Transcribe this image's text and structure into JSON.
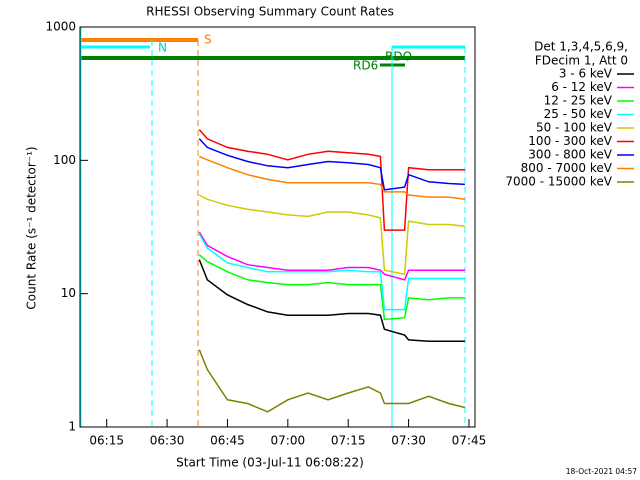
{
  "chart_data": {
    "type": "line",
    "title": "RHESSI Observing Summary Count Rates",
    "xlabel": "Start Time (03-Jul-11 06:08:22)",
    "ylabel": "Count Rate (s⁻¹ detector⁻¹)",
    "log_y": true,
    "legend_header": [
      "Det 1,3,4,5,6,9,",
      "FDecim 1, Att 0"
    ],
    "annotations": [
      "S",
      "N",
      "RDO",
      "RD6"
    ],
    "footer": "18-Oct-2021 04:57",
    "xlim": [
      368.37,
      466.5
    ],
    "xticks": [
      {
        "value": 375,
        "label": "06:15"
      },
      {
        "value": 390,
        "label": "06:30"
      },
      {
        "value": 405,
        "label": "06:45"
      },
      {
        "value": 420,
        "label": "07:00"
      },
      {
        "value": 435,
        "label": "07:15"
      },
      {
        "value": 450,
        "label": "07:30"
      },
      {
        "value": 465,
        "label": "07:45"
      }
    ],
    "ylim": [
      1,
      1000
    ],
    "yticks": [
      1,
      10,
      100,
      1000
    ],
    "x": [
      398,
      400,
      405,
      410,
      415,
      420,
      425,
      430,
      435,
      440,
      443,
      444,
      449,
      450,
      455,
      460,
      464
    ],
    "series": [
      {
        "name": "3 - 6 keV",
        "color": "#000000",
        "values": [
          18,
          12.7,
          9.8,
          8.3,
          7.3,
          6.9,
          6.9,
          6.9,
          7.1,
          7.1,
          6.9,
          5.4,
          4.9,
          4.5,
          4.4,
          4.4,
          4.4
        ]
      },
      {
        "name": "6 - 12 keV",
        "color": "#ff00ff",
        "values": [
          29,
          23,
          19,
          16.5,
          15.7,
          15,
          15,
          15,
          15.7,
          15.7,
          15,
          14,
          12.7,
          15,
          15,
          15,
          15
        ]
      },
      {
        "name": "12 - 25 keV",
        "color": "#00ff00",
        "values": [
          19.6,
          17.4,
          14.6,
          12.7,
          12.1,
          11.7,
          11.7,
          12.1,
          11.7,
          11.7,
          11.7,
          6.4,
          6.6,
          9.3,
          9,
          9.3,
          9.3
        ]
      },
      {
        "name": "25 - 50 keV",
        "color": "#00ffff",
        "values": [
          28,
          22,
          17,
          15.7,
          14.6,
          14.6,
          14.6,
          14.6,
          15,
          14.6,
          14.6,
          7.6,
          7.6,
          13,
          13,
          13,
          13
        ]
      },
      {
        "name": "50 - 100 keV",
        "color": "#cccc00",
        "values": [
          55,
          51,
          46,
          43,
          41,
          39,
          38,
          41,
          41,
          39,
          37,
          15,
          14,
          35,
          33,
          33,
          32
        ]
      },
      {
        "name": "100 - 300 keV",
        "color": "#ff0000",
        "values": [
          170,
          145,
          125,
          117,
          111,
          101,
          111,
          117,
          114,
          111,
          107,
          30,
          30,
          88,
          85,
          85,
          85
        ]
      },
      {
        "name": "300 - 800 keV",
        "color": "#0000ff",
        "values": [
          145,
          125,
          109,
          98,
          91,
          88,
          93,
          98,
          96,
          93,
          88,
          60,
          63,
          78,
          69,
          67,
          66
        ]
      },
      {
        "name": "800 - 7000 keV",
        "color": "#ff8000",
        "values": [
          107,
          101,
          88,
          78,
          72,
          68,
          68,
          68,
          68,
          68,
          66,
          58,
          58,
          55,
          53,
          53,
          51
        ]
      },
      {
        "name": "7000 - 15000 keV",
        "color": "#808000",
        "values": [
          3.8,
          2.7,
          1.6,
          1.5,
          1.3,
          1.6,
          1.8,
          1.6,
          1.8,
          2.0,
          1.8,
          1.5,
          1.5,
          1.5,
          1.7,
          1.5,
          1.4
        ]
      }
    ]
  }
}
